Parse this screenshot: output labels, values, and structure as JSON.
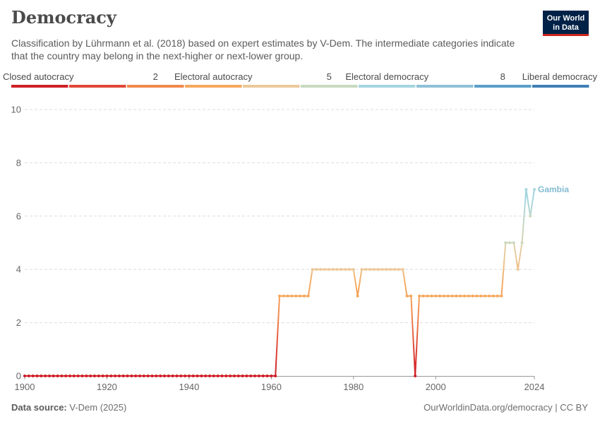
{
  "header": {
    "title": "Democracy",
    "subtitle": "Classification by Lührmann et al. (2018) based on expert estimates by V-Dem. The intermediate categories indicate that the country may belong in the next-higher or next-lower group.",
    "logo_line1": "Our World",
    "logo_line2": "in Data"
  },
  "footer": {
    "source_label": "Data source:",
    "source_value": "V-Dem (2025)",
    "url": "OurWorldinData.org/democracy | CC BY"
  },
  "legend": {
    "labels": [
      {
        "text": "Closed autocracy",
        "index": 0
      },
      {
        "text": "2",
        "index": 2
      },
      {
        "text": "Electoral autocracy",
        "index": 3
      },
      {
        "text": "5",
        "index": 5
      },
      {
        "text": "Electoral democracy",
        "index": 6
      },
      {
        "text": "8",
        "index": 8
      },
      {
        "text": "Liberal democracy",
        "index": 9
      }
    ],
    "colors": [
      "#ce1f26",
      "#e0483a",
      "#f0894f",
      "#f6a95e",
      "#ecc99b",
      "#c8d9bf",
      "#a5d5e0",
      "#8ec1d8",
      "#5a9ec9",
      "#3f7fb5"
    ]
  },
  "chart_data": {
    "type": "line",
    "title": "Democracy",
    "xlabel": "",
    "ylabel": "",
    "xlim": [
      1900,
      2024
    ],
    "ylim": [
      0,
      10
    ],
    "x_ticks": [
      1900,
      1920,
      1940,
      1960,
      1980,
      2000,
      2024
    ],
    "y_ticks": [
      0,
      2,
      4,
      6,
      8,
      10
    ],
    "grid": true,
    "series": [
      {
        "name": "Gambia",
        "label_color": "#84bcd2",
        "points": [
          [
            1900,
            0
          ],
          [
            1901,
            0
          ],
          [
            1902,
            0
          ],
          [
            1903,
            0
          ],
          [
            1904,
            0
          ],
          [
            1905,
            0
          ],
          [
            1906,
            0
          ],
          [
            1907,
            0
          ],
          [
            1908,
            0
          ],
          [
            1909,
            0
          ],
          [
            1910,
            0
          ],
          [
            1911,
            0
          ],
          [
            1912,
            0
          ],
          [
            1913,
            0
          ],
          [
            1914,
            0
          ],
          [
            1915,
            0
          ],
          [
            1916,
            0
          ],
          [
            1917,
            0
          ],
          [
            1918,
            0
          ],
          [
            1919,
            0
          ],
          [
            1920,
            0
          ],
          [
            1921,
            0
          ],
          [
            1922,
            0
          ],
          [
            1923,
            0
          ],
          [
            1924,
            0
          ],
          [
            1925,
            0
          ],
          [
            1926,
            0
          ],
          [
            1927,
            0
          ],
          [
            1928,
            0
          ],
          [
            1929,
            0
          ],
          [
            1930,
            0
          ],
          [
            1931,
            0
          ],
          [
            1932,
            0
          ],
          [
            1933,
            0
          ],
          [
            1934,
            0
          ],
          [
            1935,
            0
          ],
          [
            1936,
            0
          ],
          [
            1937,
            0
          ],
          [
            1938,
            0
          ],
          [
            1939,
            0
          ],
          [
            1940,
            0
          ],
          [
            1941,
            0
          ],
          [
            1942,
            0
          ],
          [
            1943,
            0
          ],
          [
            1944,
            0
          ],
          [
            1945,
            0
          ],
          [
            1946,
            0
          ],
          [
            1947,
            0
          ],
          [
            1948,
            0
          ],
          [
            1949,
            0
          ],
          [
            1950,
            0
          ],
          [
            1951,
            0
          ],
          [
            1952,
            0
          ],
          [
            1953,
            0
          ],
          [
            1954,
            0
          ],
          [
            1955,
            0
          ],
          [
            1956,
            0
          ],
          [
            1957,
            0
          ],
          [
            1958,
            0
          ],
          [
            1959,
            0
          ],
          [
            1960,
            0
          ],
          [
            1961,
            0
          ],
          [
            1962,
            3
          ],
          [
            1963,
            3
          ],
          [
            1964,
            3
          ],
          [
            1965,
            3
          ],
          [
            1966,
            3
          ],
          [
            1967,
            3
          ],
          [
            1968,
            3
          ],
          [
            1969,
            3
          ],
          [
            1970,
            4
          ],
          [
            1971,
            4
          ],
          [
            1972,
            4
          ],
          [
            1973,
            4
          ],
          [
            1974,
            4
          ],
          [
            1975,
            4
          ],
          [
            1976,
            4
          ],
          [
            1977,
            4
          ],
          [
            1978,
            4
          ],
          [
            1979,
            4
          ],
          [
            1980,
            4
          ],
          [
            1981,
            3
          ],
          [
            1982,
            4
          ],
          [
            1983,
            4
          ],
          [
            1984,
            4
          ],
          [
            1985,
            4
          ],
          [
            1986,
            4
          ],
          [
            1987,
            4
          ],
          [
            1988,
            4
          ],
          [
            1989,
            4
          ],
          [
            1990,
            4
          ],
          [
            1991,
            4
          ],
          [
            1992,
            4
          ],
          [
            1993,
            3
          ],
          [
            1994,
            3
          ],
          [
            1995,
            0
          ],
          [
            1996,
            3
          ],
          [
            1997,
            3
          ],
          [
            1998,
            3
          ],
          [
            1999,
            3
          ],
          [
            2000,
            3
          ],
          [
            2001,
            3
          ],
          [
            2002,
            3
          ],
          [
            2003,
            3
          ],
          [
            2004,
            3
          ],
          [
            2005,
            3
          ],
          [
            2006,
            3
          ],
          [
            2007,
            3
          ],
          [
            2008,
            3
          ],
          [
            2009,
            3
          ],
          [
            2010,
            3
          ],
          [
            2011,
            3
          ],
          [
            2012,
            3
          ],
          [
            2013,
            3
          ],
          [
            2014,
            3
          ],
          [
            2015,
            3
          ],
          [
            2016,
            3
          ],
          [
            2017,
            5
          ],
          [
            2018,
            5
          ],
          [
            2019,
            5
          ],
          [
            2020,
            4
          ],
          [
            2021,
            5
          ],
          [
            2022,
            7
          ],
          [
            2023,
            6
          ],
          [
            2024,
            7
          ]
        ]
      }
    ]
  }
}
